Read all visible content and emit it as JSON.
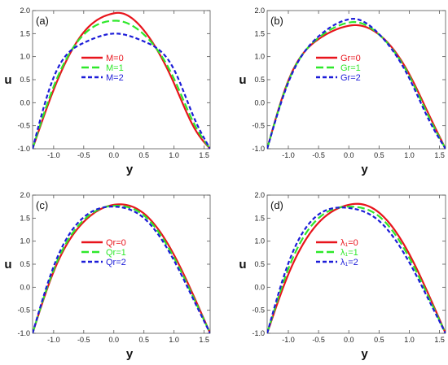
{
  "chart_data": [
    {
      "panel_label": "(a)",
      "type": "line",
      "xlabel": "y",
      "ylabel": "u",
      "xlim": [
        -1.35,
        1.6
      ],
      "ylim": [
        -1.0,
        2.0
      ],
      "x_ticks": [
        "-1.0",
        "-0.5",
        "0.0",
        "0.5",
        "1.0",
        "1.5"
      ],
      "y_ticks": [
        "-1.0",
        "-0.5",
        "0.0",
        "0.5",
        "1.0",
        "1.5",
        "2.0"
      ],
      "legend_position": "center",
      "series": [
        {
          "name": "M=0",
          "color": "#e8141c",
          "style": "solid",
          "x": [
            -1.35,
            -1.0,
            -0.5,
            0.0,
            0.05,
            0.5,
            1.0,
            1.35,
            1.6
          ],
          "y": [
            -1.0,
            0.28,
            1.53,
            1.94,
            1.95,
            1.57,
            0.42,
            -0.58,
            -1.0
          ]
        },
        {
          "name": "M=1",
          "color": "#2ee82a",
          "style": "dashed",
          "x": [
            -1.35,
            -1.0,
            -0.5,
            0.0,
            0.05,
            0.5,
            1.0,
            1.35,
            1.6
          ],
          "y": [
            -1.0,
            0.35,
            1.48,
            1.78,
            1.78,
            1.48,
            0.52,
            -0.5,
            -1.0
          ]
        },
        {
          "name": "M=2",
          "color": "#1c1cd8",
          "style": "dashed",
          "x": [
            -1.35,
            -1.0,
            -0.5,
            0.0,
            0.05,
            0.5,
            1.0,
            1.35,
            1.6
          ],
          "y": [
            -1.0,
            0.55,
            1.3,
            1.5,
            1.5,
            1.33,
            0.72,
            -0.38,
            -1.0
          ]
        }
      ]
    },
    {
      "panel_label": "(b)",
      "type": "line",
      "xlabel": "y",
      "ylabel": "u",
      "xlim": [
        -1.35,
        1.6
      ],
      "ylim": [
        -1.0,
        2.0
      ],
      "x_ticks": [
        "-1.0",
        "-0.5",
        "0.0",
        "0.5",
        "1.0",
        "1.5"
      ],
      "y_ticks": [
        "-1.0",
        "-0.5",
        "0.0",
        "0.5",
        "1.0",
        "1.5",
        "2.0"
      ],
      "legend_position": "center",
      "series": [
        {
          "name": "Gr=0",
          "color": "#e8141c",
          "style": "solid",
          "x": [
            -1.35,
            -1.0,
            -0.5,
            0.0,
            0.05,
            0.5,
            1.0,
            1.35,
            1.6
          ],
          "y": [
            -1.0,
            0.48,
            1.38,
            1.67,
            1.68,
            1.48,
            0.62,
            -0.33,
            -1.0
          ]
        },
        {
          "name": "Gr=1",
          "color": "#2ee82a",
          "style": "dashed",
          "x": [
            -1.35,
            -1.0,
            -0.5,
            0.0,
            0.05,
            0.5,
            1.0,
            1.35,
            1.6
          ],
          "y": [
            -1.0,
            0.46,
            1.41,
            1.74,
            1.75,
            1.48,
            0.58,
            -0.38,
            -1.0
          ]
        },
        {
          "name": "Gr=2",
          "color": "#1c1cd8",
          "style": "dashed",
          "x": [
            -1.35,
            -1.0,
            -0.5,
            0.0,
            0.05,
            0.5,
            1.0,
            1.35,
            1.6
          ],
          "y": [
            -1.0,
            0.44,
            1.44,
            1.81,
            1.82,
            1.49,
            0.53,
            -0.44,
            -1.0
          ]
        }
      ]
    },
    {
      "panel_label": "(c)",
      "type": "line",
      "xlabel": "y",
      "ylabel": "u",
      "xlim": [
        -1.35,
        1.6
      ],
      "ylim": [
        -1.0,
        2.0
      ],
      "x_ticks": [
        "-1.0",
        "-0.5",
        "0.0",
        "0.5",
        "1.0",
        "1.5"
      ],
      "y_ticks": [
        "-1.0",
        "-0.5",
        "0.0",
        "0.5",
        "1.0",
        "1.5",
        "2.0"
      ],
      "legend_position": "center",
      "series": [
        {
          "name": "Qr=0",
          "color": "#e8141c",
          "style": "solid",
          "x": [
            -1.35,
            -1.0,
            -0.5,
            0.0,
            0.1,
            0.5,
            1.0,
            1.35,
            1.6
          ],
          "y": [
            -1.0,
            0.34,
            1.42,
            1.79,
            1.8,
            1.6,
            0.7,
            -0.26,
            -1.0
          ]
        },
        {
          "name": "Qr=1",
          "color": "#2ee82a",
          "style": "dashed",
          "x": [
            -1.35,
            -1.0,
            -0.5,
            0.0,
            0.05,
            0.5,
            1.0,
            1.35,
            1.6
          ],
          "y": [
            -1.0,
            0.38,
            1.46,
            1.77,
            1.77,
            1.56,
            0.64,
            -0.3,
            -1.0
          ]
        },
        {
          "name": "Qr=2",
          "color": "#1c1cd8",
          "style": "dashed",
          "x": [
            -1.35,
            -1.0,
            -0.5,
            -0.05,
            0.0,
            0.5,
            1.0,
            1.35,
            1.6
          ],
          "y": [
            -1.0,
            0.45,
            1.52,
            1.75,
            1.75,
            1.5,
            0.58,
            -0.34,
            -1.0
          ]
        }
      ]
    },
    {
      "panel_label": "(d)",
      "type": "line",
      "xlabel": "y",
      "ylabel": "u",
      "xlim": [
        -1.35,
        1.6
      ],
      "ylim": [
        -1.0,
        2.0
      ],
      "x_ticks": [
        "-1.0",
        "-0.5",
        "0.0",
        "0.5",
        "1.0",
        "1.5"
      ],
      "y_ticks": [
        "-1.0",
        "-0.5",
        "0.0",
        "0.5",
        "1.0",
        "1.5",
        "2.0"
      ],
      "legend_position": "center",
      "series": [
        {
          "name": "λ₁=0",
          "color": "#e8141c",
          "style": "solid",
          "x": [
            -1.35,
            -1.0,
            -0.5,
            0.0,
            0.1,
            0.5,
            1.0,
            1.35,
            1.6
          ],
          "y": [
            -1.0,
            0.28,
            1.4,
            1.79,
            1.81,
            1.62,
            0.72,
            -0.25,
            -1.0
          ]
        },
        {
          "name": "λ₁=1",
          "color": "#2ee82a",
          "style": "dashed",
          "x": [
            -1.35,
            -1.0,
            -0.5,
            0.0,
            0.0,
            0.5,
            1.0,
            1.35,
            1.6
          ],
          "y": [
            -1.0,
            0.4,
            1.5,
            1.75,
            1.75,
            1.54,
            0.64,
            -0.3,
            -1.0
          ]
        },
        {
          "name": "λ₁=2",
          "color": "#1c1cd8",
          "style": "dashed",
          "x": [
            -1.35,
            -1.0,
            -0.5,
            -0.1,
            0.0,
            0.5,
            1.0,
            1.35,
            1.6
          ],
          "y": [
            -1.0,
            0.52,
            1.58,
            1.73,
            1.72,
            1.44,
            0.54,
            -0.35,
            -1.0
          ]
        }
      ]
    }
  ]
}
